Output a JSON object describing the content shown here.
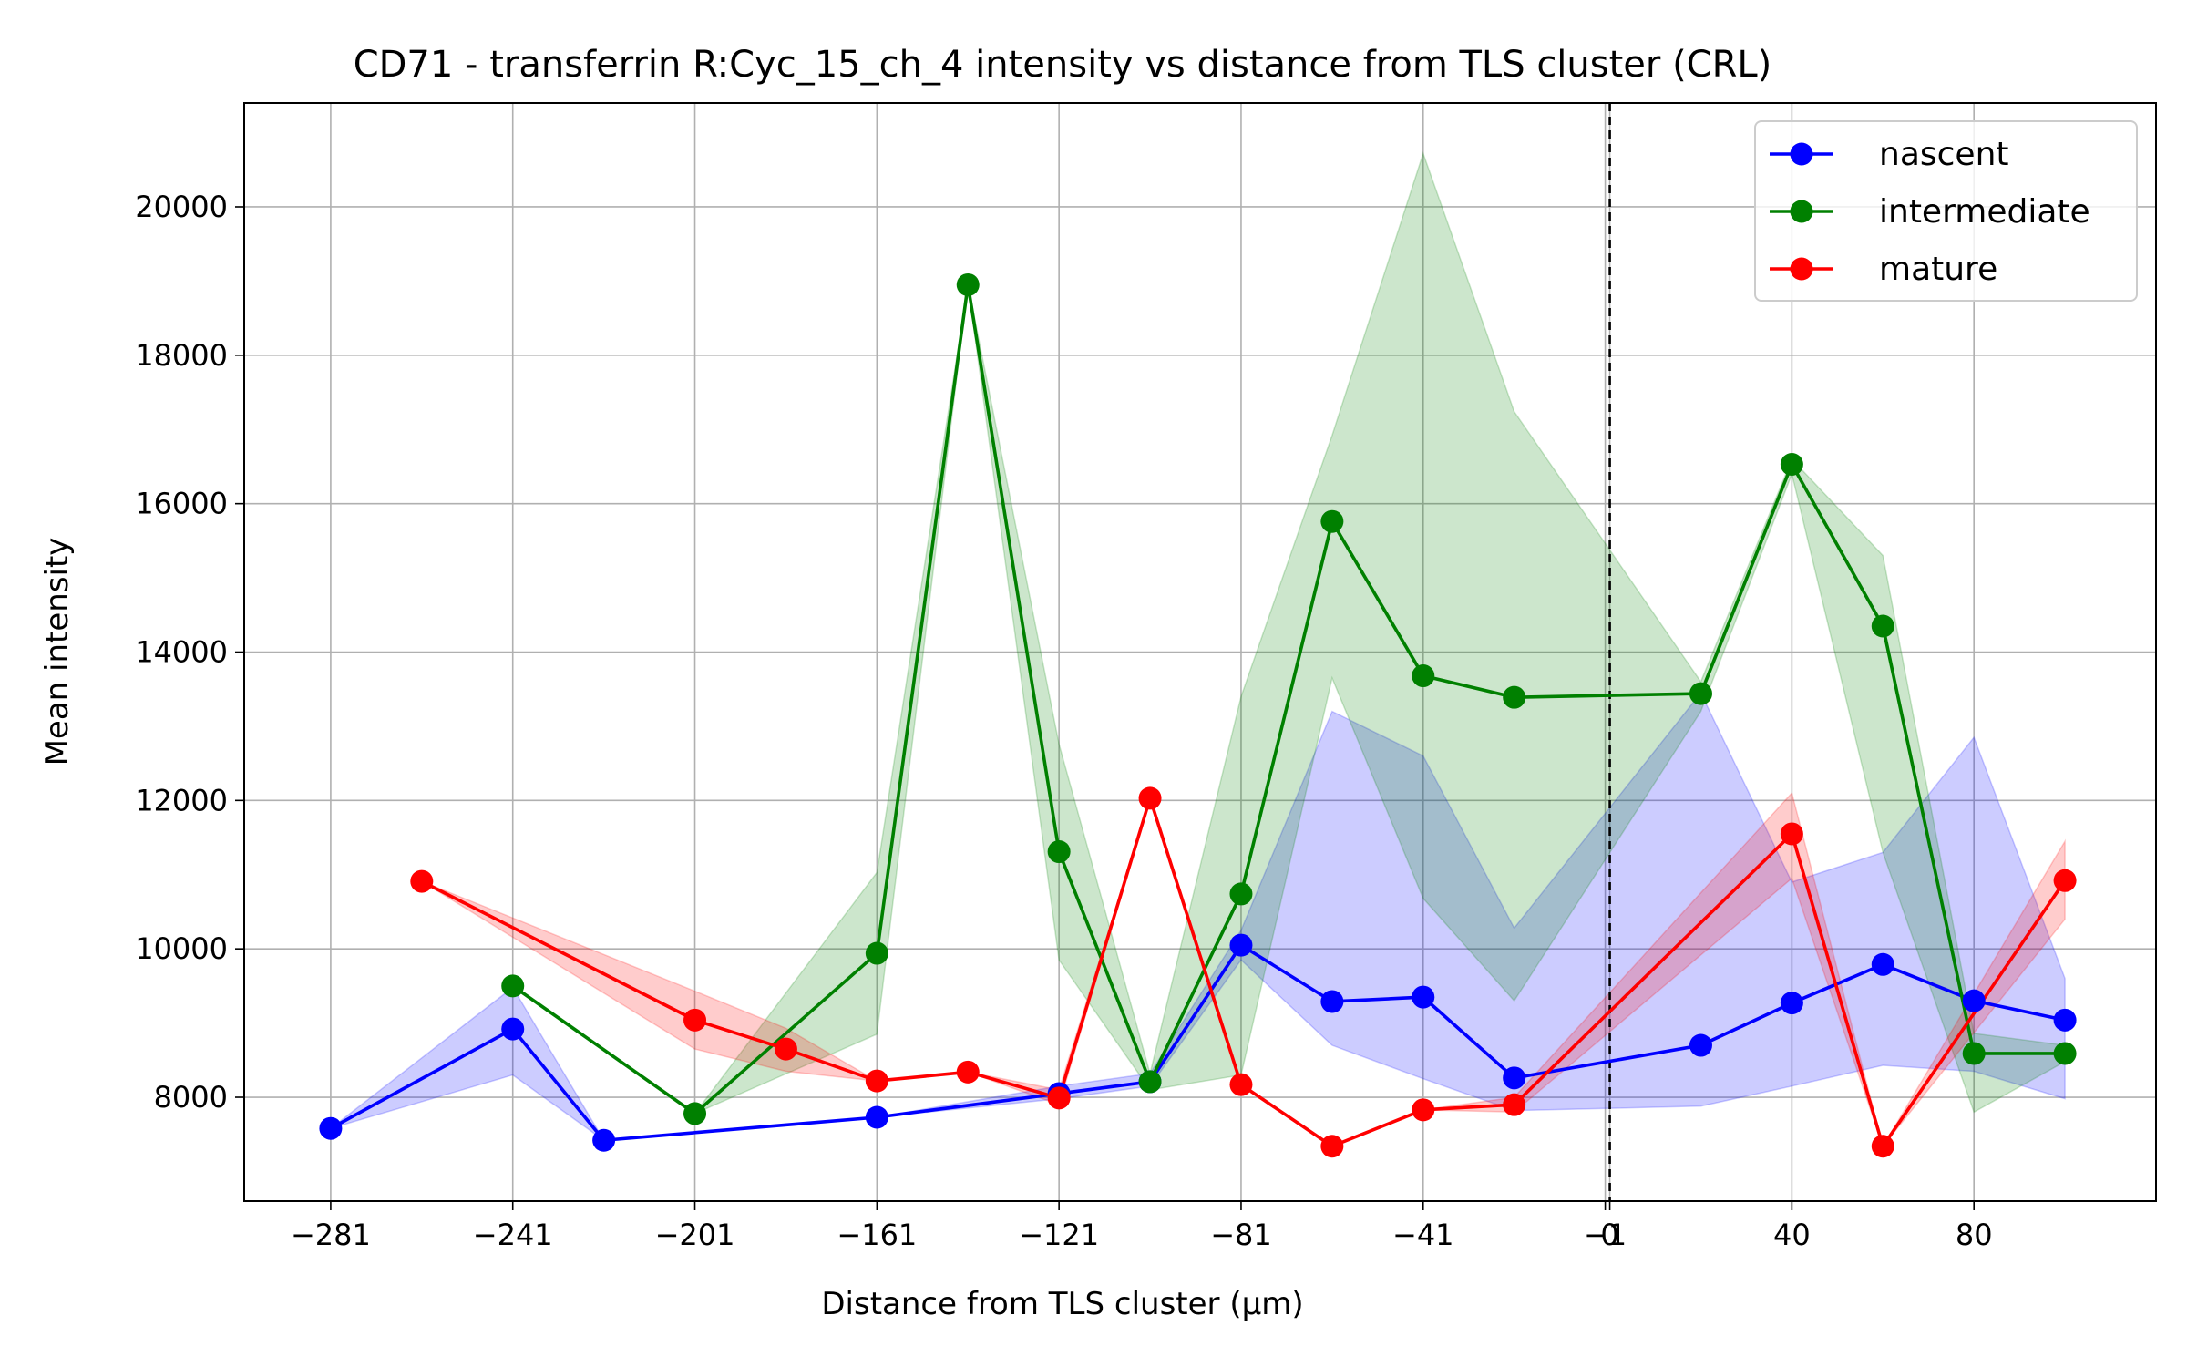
{
  "chart_data": {
    "type": "line",
    "title": "CD71 - transferrin R:Cyc_15_ch_4 intensity vs distance from TLS cluster (CRL)",
    "xlabel": "Distance from TLS cluster (μm)",
    "ylabel": "Mean intensity",
    "xlim": [
      -300,
      120
    ],
    "ylim": [
      6600,
      21400
    ],
    "x_ticks": [
      {
        "value": -281,
        "label": "−281"
      },
      {
        "value": -241,
        "label": "−241"
      },
      {
        "value": -201,
        "label": "−201"
      },
      {
        "value": -161,
        "label": "−161"
      },
      {
        "value": -121,
        "label": "−121"
      },
      {
        "value": -81,
        "label": "−81"
      },
      {
        "value": -41,
        "label": "−41"
      },
      {
        "value": -1,
        "label": "−1"
      },
      {
        "value": 0,
        "label": "0"
      },
      {
        "value": 40,
        "label": "40"
      },
      {
        "value": 80,
        "label": "80"
      }
    ],
    "y_ticks": [
      {
        "value": 8000,
        "label": "8000"
      },
      {
        "value": 10000,
        "label": "10000"
      },
      {
        "value": 12000,
        "label": "12000"
      },
      {
        "value": 14000,
        "label": "14000"
      },
      {
        "value": 16000,
        "label": "16000"
      },
      {
        "value": 18000,
        "label": "18000"
      },
      {
        "value": 20000,
        "label": "20000"
      }
    ],
    "grid": true,
    "legend_position": "top-right",
    "reference_line": {
      "x": 0,
      "style": "dashed",
      "color": "#000000"
    },
    "series": [
      {
        "name": "nascent",
        "color": "#0000ff",
        "points": [
          {
            "x": -281,
            "y": 7580,
            "lo": 7580,
            "hi": 7580
          },
          {
            "x": -241,
            "y": 8920,
            "lo": 8300,
            "hi": 9480
          },
          {
            "x": -221,
            "y": 7420,
            "lo": 7420,
            "hi": 7420
          },
          {
            "x": -161,
            "y": 7730,
            "lo": 7730,
            "hi": 7730
          },
          {
            "x": -121,
            "y": 8050,
            "lo": 7980,
            "hi": 8150
          },
          {
            "x": -101,
            "y": 8210,
            "lo": 8150,
            "hi": 8320
          },
          {
            "x": -81,
            "y": 10050,
            "lo": 9850,
            "hi": 10250
          },
          {
            "x": -61,
            "y": 9290,
            "lo": 8700,
            "hi": 13200
          },
          {
            "x": -41,
            "y": 9350,
            "lo": 8250,
            "hi": 12600
          },
          {
            "x": -21,
            "y": 8260,
            "lo": 7820,
            "hi": 10280
          },
          {
            "x": 20,
            "y": 8700,
            "lo": 7880,
            "hi": 13450
          },
          {
            "x": 40,
            "y": 9270,
            "lo": 8150,
            "hi": 10900
          },
          {
            "x": 60,
            "y": 9790,
            "lo": 8430,
            "hi": 11300
          },
          {
            "x": 80,
            "y": 9300,
            "lo": 8350,
            "hi": 12850
          },
          {
            "x": 100,
            "y": 9040,
            "lo": 7980,
            "hi": 9600
          }
        ]
      },
      {
        "name": "intermediate",
        "color": "#008000",
        "points": [
          {
            "x": -241,
            "y": 9500,
            "lo": 9500,
            "hi": 9500
          },
          {
            "x": -201,
            "y": 7780,
            "lo": 7780,
            "hi": 7780
          },
          {
            "x": -161,
            "y": 9940,
            "lo": 8850,
            "hi": 11030
          },
          {
            "x": -141,
            "y": 18950,
            "lo": 18950,
            "hi": 18950
          },
          {
            "x": -121,
            "y": 11310,
            "lo": 9850,
            "hi": 12760
          },
          {
            "x": -101,
            "y": 8210,
            "lo": 8100,
            "hi": 8320
          },
          {
            "x": -81,
            "y": 10740,
            "lo": 8300,
            "hi": 13400
          },
          {
            "x": -61,
            "y": 15760,
            "lo": 13650,
            "hi": 16920
          },
          {
            "x": -41,
            "y": 13680,
            "lo": 10680,
            "hi": 20720
          },
          {
            "x": -21,
            "y": 13390,
            "lo": 9300,
            "hi": 17240
          },
          {
            "x": 20,
            "y": 13440,
            "lo": 13200,
            "hi": 13600
          },
          {
            "x": 40,
            "y": 16530,
            "lo": 16400,
            "hi": 16600
          },
          {
            "x": 60,
            "y": 14350,
            "lo": 11300,
            "hi": 15300
          },
          {
            "x": 80,
            "y": 8590,
            "lo": 7800,
            "hi": 8860
          },
          {
            "x": 100,
            "y": 8590,
            "lo": 8480,
            "hi": 8700
          }
        ]
      },
      {
        "name": "mature",
        "color": "#ff0000",
        "points": [
          {
            "x": -261,
            "y": 10910,
            "lo": 10910,
            "hi": 10910
          },
          {
            "x": -201,
            "y": 9040,
            "lo": 8650,
            "hi": 9430
          },
          {
            "x": -181,
            "y": 8650,
            "lo": 8350,
            "hi": 8930
          },
          {
            "x": -161,
            "y": 8220,
            "lo": 8220,
            "hi": 8220
          },
          {
            "x": -141,
            "y": 8340,
            "lo": 8340,
            "hi": 8340
          },
          {
            "x": -121,
            "y": 7990,
            "lo": 7900,
            "hi": 8100
          },
          {
            "x": -101,
            "y": 12030,
            "lo": 12030,
            "hi": 12030
          },
          {
            "x": -81,
            "y": 8170,
            "lo": 8170,
            "hi": 8170
          },
          {
            "x": -61,
            "y": 7340,
            "lo": 7340,
            "hi": 7340
          },
          {
            "x": -41,
            "y": 7830,
            "lo": 7830,
            "hi": 7830
          },
          {
            "x": -21,
            "y": 7900,
            "lo": 7800,
            "hi": 8000
          },
          {
            "x": 40,
            "y": 11550,
            "lo": 10950,
            "hi": 12100
          },
          {
            "x": 60,
            "y": 7340,
            "lo": 7340,
            "hi": 7340
          },
          {
            "x": 100,
            "y": 10920,
            "lo": 10400,
            "hi": 11450
          }
        ]
      }
    ]
  }
}
